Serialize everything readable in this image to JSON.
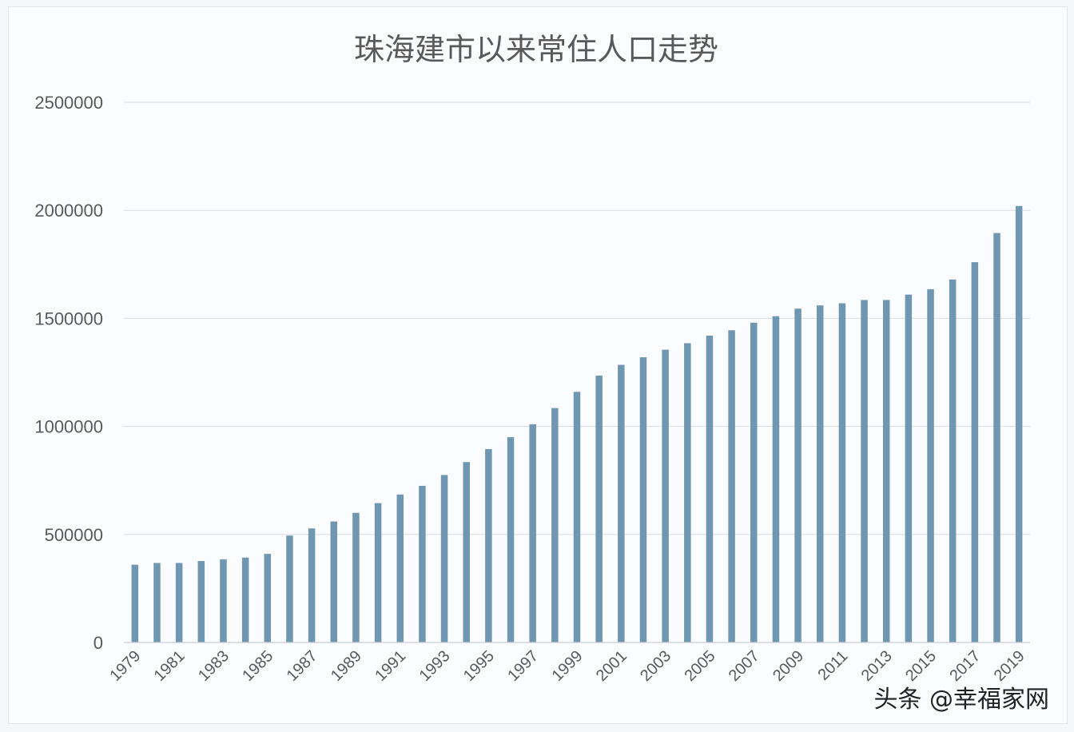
{
  "watermark": "头条 @幸福家网",
  "colors": {
    "bar": "#6f97b1",
    "grid": "#d9dde3",
    "axis": "#c9ced6",
    "text": "#595959",
    "background": "#fbfcfd"
  },
  "chart_data": {
    "type": "bar",
    "title": "珠海建市以来常住人口走势",
    "xlabel": "",
    "ylabel": "",
    "ylim": [
      0,
      2500000
    ],
    "yticks": [
      0,
      500000,
      1000000,
      1500000,
      2000000,
      2500000
    ],
    "ytick_labels": [
      "0",
      "500000",
      "1000000",
      "1500000",
      "2000000",
      "2500000"
    ],
    "grid": true,
    "legend": "none",
    "categories": [
      "1979",
      "1980",
      "1981",
      "1982",
      "1983",
      "1984",
      "1985",
      "1986",
      "1987",
      "1988",
      "1989",
      "1990",
      "1991",
      "1992",
      "1993",
      "1994",
      "1995",
      "1996",
      "1997",
      "1998",
      "1999",
      "2000",
      "2001",
      "2002",
      "2003",
      "2004",
      "2005",
      "2006",
      "2007",
      "2008",
      "2009",
      "2010",
      "2011",
      "2012",
      "2013",
      "2014",
      "2015",
      "2016",
      "2017",
      "2018",
      "2019"
    ],
    "xtick_labels": [
      "1979",
      "1981",
      "1983",
      "1985",
      "1987",
      "1989",
      "1991",
      "1993",
      "1995",
      "1997",
      "1999",
      "2001",
      "2003",
      "2005",
      "2007",
      "2009",
      "2011",
      "2013",
      "2015",
      "2017",
      "2019"
    ],
    "values": [
      360000,
      368000,
      368000,
      377000,
      385000,
      393000,
      410000,
      495000,
      528000,
      560000,
      600000,
      645000,
      685000,
      725000,
      775000,
      835000,
      895000,
      950000,
      1010000,
      1085000,
      1160000,
      1235000,
      1285000,
      1320000,
      1355000,
      1385000,
      1420000,
      1445000,
      1480000,
      1510000,
      1545000,
      1560000,
      1570000,
      1585000,
      1585000,
      1610000,
      1635000,
      1680000,
      1760000,
      1895000,
      2020000
    ]
  }
}
